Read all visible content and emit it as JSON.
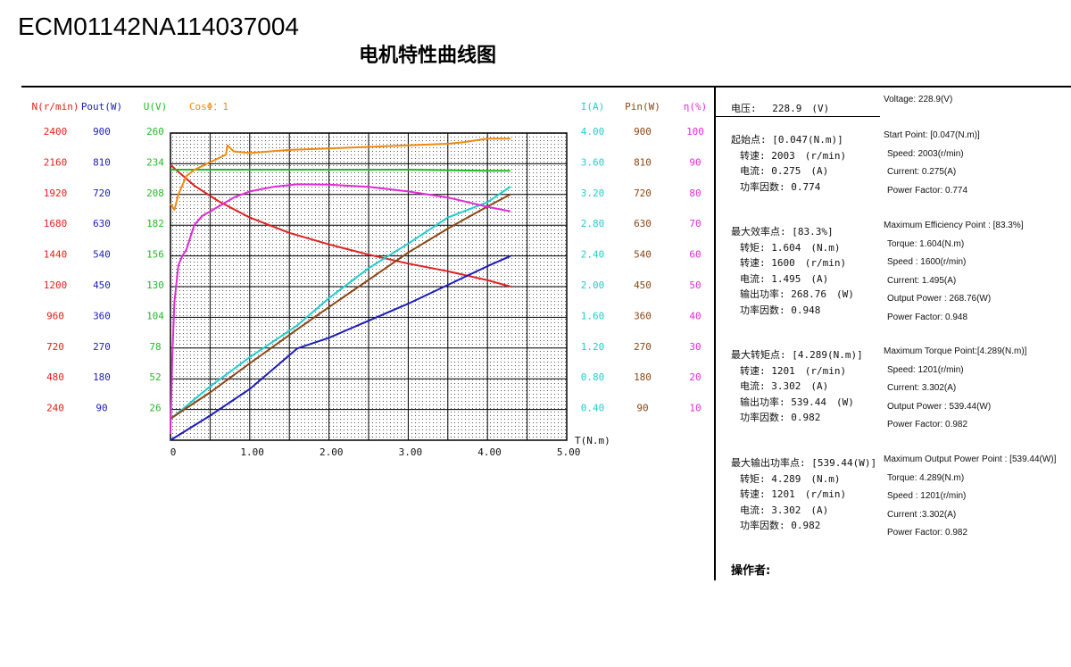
{
  "header": {
    "doc_id": "ECM01142NA114037004",
    "title": "电机特性曲线图"
  },
  "chart_data": {
    "type": "line",
    "title": "电机特性曲线图",
    "xlabel": "T(N.m)",
    "xlim": [
      0,
      5
    ],
    "x_ticks": [
      "0",
      "1.00",
      "2.00",
      "3.00",
      "4.00",
      "5.00"
    ],
    "grid": true,
    "axes": [
      {
        "id": "N",
        "label": "N(r/min)",
        "color": "#e0201a",
        "ticks": [
          "240",
          "480",
          "720",
          "960",
          "1200",
          "1440",
          "1680",
          "1920",
          "2160",
          "2400"
        ],
        "range": [
          0,
          2400
        ]
      },
      {
        "id": "Pout",
        "label": "Pout(W)",
        "color": "#1d1db8",
        "ticks": [
          "90",
          "180",
          "270",
          "360",
          "450",
          "540",
          "630",
          "720",
          "810",
          "900"
        ],
        "range": [
          0,
          900
        ]
      },
      {
        "id": "U",
        "label": "U(V)",
        "color": "#22bb22",
        "ticks": [
          "26",
          "52",
          "78",
          "104",
          "130",
          "156",
          "182",
          "208",
          "234",
          "260"
        ],
        "range": [
          0,
          260
        ]
      },
      {
        "id": "Cos",
        "label": "CosΦ：1",
        "color": "#ee8a10",
        "ticks": [],
        "range": [
          0,
          1
        ]
      },
      {
        "id": "I",
        "label": "I(A)",
        "color": "#22cccc",
        "ticks": [
          "0.40",
          "0.80",
          "1.20",
          "1.60",
          "2.00",
          "2.40",
          "2.80",
          "3.20",
          "3.60",
          "4.00"
        ],
        "range": [
          0,
          4
        ]
      },
      {
        "id": "Pin",
        "label": "Pin(W)",
        "color": "#8b4513",
        "ticks": [
          "90",
          "180",
          "270",
          "360",
          "450",
          "540",
          "630",
          "720",
          "810",
          "900"
        ],
        "range": [
          0,
          900
        ]
      },
      {
        "id": "Eff",
        "label": "η(%)",
        "color": "#e02ad6",
        "ticks": [
          "10",
          "20",
          "30",
          "40",
          "50",
          "60",
          "70",
          "80",
          "90",
          "100"
        ],
        "range": [
          0,
          100
        ]
      }
    ],
    "series": [
      {
        "axis": "N",
        "color": "#dd2222",
        "points": [
          [
            0,
            2150
          ],
          [
            0.3,
            1990
          ],
          [
            0.6,
            1870
          ],
          [
            1.0,
            1740
          ],
          [
            1.5,
            1620
          ],
          [
            2.0,
            1530
          ],
          [
            2.5,
            1450
          ],
          [
            3.0,
            1380
          ],
          [
            3.5,
            1320
          ],
          [
            4.0,
            1250
          ],
          [
            4.289,
            1201
          ]
        ]
      },
      {
        "axis": "Pout",
        "color": "#1d1db8",
        "points": [
          [
            0,
            0
          ],
          [
            0.5,
            72
          ],
          [
            1.0,
            150
          ],
          [
            1.6,
            269
          ],
          [
            2.0,
            300
          ],
          [
            2.5,
            350
          ],
          [
            3.0,
            400
          ],
          [
            3.5,
            455
          ],
          [
            4.0,
            510
          ],
          [
            4.289,
            539.44
          ]
        ]
      },
      {
        "axis": "U",
        "color": "#22bb22",
        "points": [
          [
            0,
            229
          ],
          [
            1.0,
            229
          ],
          [
            2.0,
            229
          ],
          [
            3.0,
            229
          ],
          [
            4.0,
            228
          ],
          [
            4.289,
            228
          ]
        ]
      },
      {
        "axis": "Cos",
        "color": "#ee8a10",
        "points": [
          [
            0,
            0.77
          ],
          [
            0.05,
            0.75
          ],
          [
            0.1,
            0.8
          ],
          [
            0.2,
            0.86
          ],
          [
            0.3,
            0.88
          ],
          [
            0.7,
            0.93
          ],
          [
            0.72,
            0.96
          ],
          [
            0.8,
            0.94
          ],
          [
            1.0,
            0.935
          ],
          [
            1.5,
            0.945
          ],
          [
            2.0,
            0.95
          ],
          [
            2.5,
            0.955
          ],
          [
            3.0,
            0.96
          ],
          [
            3.5,
            0.965
          ],
          [
            3.7,
            0.97
          ],
          [
            4.0,
            0.982
          ],
          [
            4.289,
            0.982
          ]
        ]
      },
      {
        "axis": "I",
        "color": "#22cccc",
        "points": [
          [
            0,
            0.275
          ],
          [
            0.5,
            0.7
          ],
          [
            1.0,
            1.08
          ],
          [
            1.6,
            1.495
          ],
          [
            2.0,
            1.85
          ],
          [
            2.5,
            2.24
          ],
          [
            3.0,
            2.56
          ],
          [
            3.5,
            2.9
          ],
          [
            4.0,
            3.1
          ],
          [
            4.289,
            3.302
          ]
        ]
      },
      {
        "axis": "Pin",
        "color": "#8b4513",
        "points": [
          [
            0,
            63
          ],
          [
            0.5,
            140
          ],
          [
            1.0,
            225
          ],
          [
            1.6,
            325
          ],
          [
            2.0,
            390
          ],
          [
            2.5,
            470
          ],
          [
            3.0,
            550
          ],
          [
            3.5,
            620
          ],
          [
            4.0,
            685
          ],
          [
            4.289,
            720
          ]
        ]
      },
      {
        "axis": "Eff",
        "color": "#e02ad6",
        "points": [
          [
            0,
            2
          ],
          [
            0.02,
            25
          ],
          [
            0.05,
            45
          ],
          [
            0.1,
            57
          ],
          [
            0.15,
            60
          ],
          [
            0.2,
            62
          ],
          [
            0.3,
            70
          ],
          [
            0.4,
            73
          ],
          [
            0.6,
            76
          ],
          [
            0.8,
            79
          ],
          [
            1.0,
            81
          ],
          [
            1.3,
            82.5
          ],
          [
            1.6,
            83.3
          ],
          [
            2.0,
            83.2
          ],
          [
            2.5,
            82.5
          ],
          [
            3.0,
            81
          ],
          [
            3.5,
            79
          ],
          [
            4.0,
            76
          ],
          [
            4.289,
            74.5
          ]
        ]
      }
    ]
  },
  "panel": {
    "voltage_cn": "电压:　 228.9　(V)",
    "voltage_en": "Voltage:  228.9(V)",
    "start": {
      "cn": [
        "起始点: [0.047(N.m)]",
        " 转速: 2003　(r/min)",
        " 电流: 0.275　(A)",
        " 功率因数: 0.774"
      ],
      "en": [
        "Start Point: [0.047(N.m)]",
        "Speed: 2003(r/min)",
        "Current: 0.275(A)",
        "Power Factor: 0.774"
      ]
    },
    "max_eff": {
      "cn": [
        "最大效率点: [83.3%]",
        " 转矩: 1.604　(N.m)",
        " 转速: 1600　(r/min)",
        " 电流: 1.495　(A)",
        " 输出功率: 268.76　(W)",
        " 功率因数: 0.948"
      ],
      "en": [
        "Maximum Efficiency Point : [83.3%]",
        "Torque: 1.604(N.m)",
        "Speed : 1600(r/min)",
        "Current: 1.495(A)",
        "Output Power :  268.76(W)",
        "Power Factor: 0.948"
      ]
    },
    "max_torque": {
      "cn": [
        "最大转矩点: [4.289(N.m)]",
        " 转速: 1201　(r/min)",
        " 电流: 3.302　(A)",
        " 输出功率: 539.44　(W)",
        " 功率因数: 0.982"
      ],
      "en": [
        "Maximum Torque Point:[4.289(N.m)]",
        "Speed: 1201(r/min)",
        "Current: 3.302(A)",
        "Output Power : 539.44(W)",
        "Power Factor: 0.982"
      ]
    },
    "max_output": {
      "cn": [
        "最大输出功率点: [539.44(W)]",
        " 转矩: 4.289　(N.m)",
        " 转速: 1201　(r/min)",
        " 电流: 3.302　(A)",
        " 功率因数: 0.982"
      ],
      "en": [
        "Maximum Output Power Point : [539.44(W)]",
        "Torque: 4.289(N.m)",
        "Speed : 1201(r/min)",
        "Current :3.302(A)",
        "Power Factor: 0.982"
      ]
    },
    "operator": "操作者:"
  }
}
